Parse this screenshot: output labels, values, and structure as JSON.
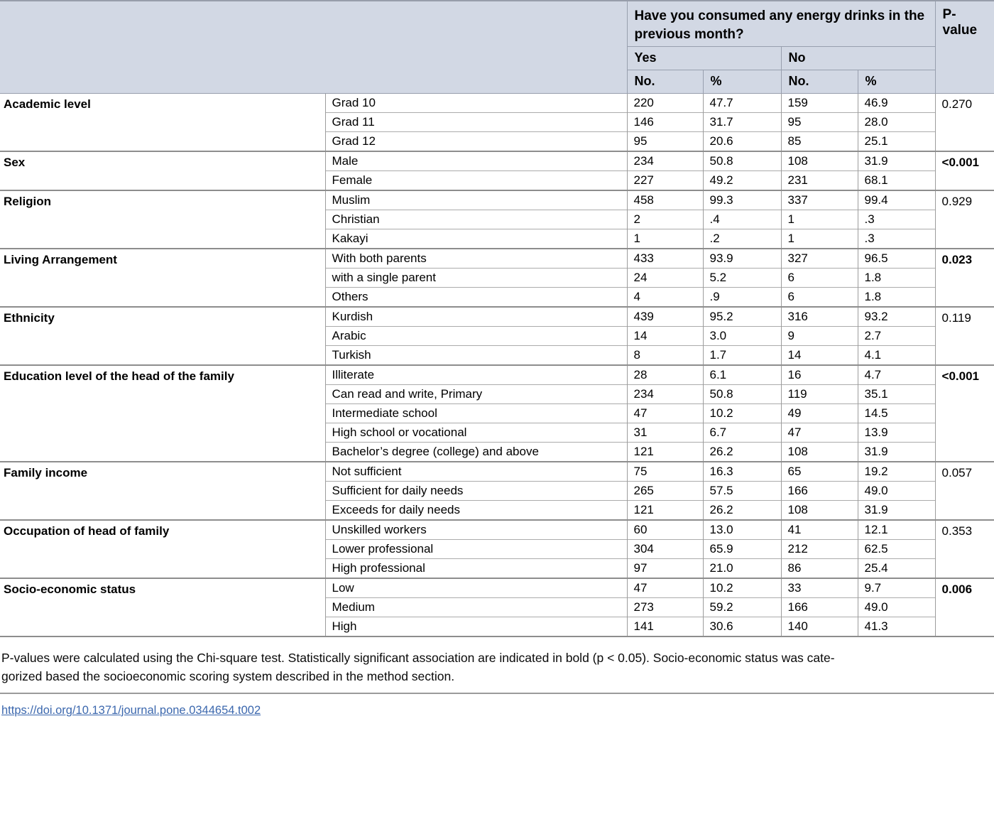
{
  "colors": {
    "header_bg": "#d2d8e4",
    "group_border": "#8d8d8d",
    "cell_border": "#9c9c9c",
    "link_blue": "#3c68ae"
  },
  "table": {
    "header": {
      "span_title": "Have you consumed any energy drinks in the previous month?",
      "yes_label": "Yes",
      "no_label": "No",
      "count_label": "No.",
      "percent_label": "%",
      "p_value_label": "P-value"
    },
    "groups": [
      {
        "category": "Academic level",
        "p": "0.270",
        "p_bold": false,
        "rows": [
          {
            "label": "Grad 10",
            "yes_n": "220",
            "yes_p": "47.7",
            "no_n": "159",
            "no_p": "46.9"
          },
          {
            "label": "Grad 11",
            "yes_n": "146",
            "yes_p": "31.7",
            "no_n": "95",
            "no_p": "28.0"
          },
          {
            "label": "Grad 12",
            "yes_n": "95",
            "yes_p": "20.6",
            "no_n": "85",
            "no_p": "25.1"
          }
        ]
      },
      {
        "category": "Sex",
        "p": "<0.001",
        "p_bold": true,
        "rows": [
          {
            "label": "Male",
            "yes_n": "234",
            "yes_p": "50.8",
            "no_n": "108",
            "no_p": "31.9"
          },
          {
            "label": "Female",
            "yes_n": "227",
            "yes_p": "49.2",
            "no_n": "231",
            "no_p": "68.1"
          }
        ]
      },
      {
        "category": "Religion",
        "p": "0.929",
        "p_bold": false,
        "rows": [
          {
            "label": "Muslim",
            "yes_n": "458",
            "yes_p": "99.3",
            "no_n": "337",
            "no_p": "99.4"
          },
          {
            "label": "Christian",
            "yes_n": "2",
            "yes_p": ".4",
            "no_n": "1",
            "no_p": ".3"
          },
          {
            "label": "Kakayi",
            "yes_n": "1",
            "yes_p": ".2",
            "no_n": "1",
            "no_p": ".3"
          }
        ]
      },
      {
        "category": "Living Arrangement",
        "p": "0.023",
        "p_bold": true,
        "rows": [
          {
            "label": "With both parents",
            "yes_n": "433",
            "yes_p": "93.9",
            "no_n": "327",
            "no_p": "96.5"
          },
          {
            "label": "with a single parent",
            "yes_n": "24",
            "yes_p": "5.2",
            "no_n": "6",
            "no_p": "1.8"
          },
          {
            "label": "Others",
            "yes_n": "4",
            "yes_p": ".9",
            "no_n": "6",
            "no_p": "1.8"
          }
        ]
      },
      {
        "category": "Ethnicity",
        "p": "0.119",
        "p_bold": false,
        "rows": [
          {
            "label": "Kurdish",
            "yes_n": "439",
            "yes_p": "95.2",
            "no_n": "316",
            "no_p": "93.2"
          },
          {
            "label": "Arabic",
            "yes_n": "14",
            "yes_p": "3.0",
            "no_n": "9",
            "no_p": "2.7"
          },
          {
            "label": "Turkish",
            "yes_n": "8",
            "yes_p": "1.7",
            "no_n": "14",
            "no_p": "4.1"
          }
        ]
      },
      {
        "category": "Education level of the head of the family",
        "p": "<0.001",
        "p_bold": true,
        "rows": [
          {
            "label": "Illiterate",
            "yes_n": "28",
            "yes_p": "6.1",
            "no_n": "16",
            "no_p": "4.7"
          },
          {
            "label": "Can read and write, Primary",
            "yes_n": "234",
            "yes_p": "50.8",
            "no_n": "119",
            "no_p": "35.1"
          },
          {
            "label": "Intermediate school",
            "yes_n": "47",
            "yes_p": "10.2",
            "no_n": "49",
            "no_p": "14.5"
          },
          {
            "label": "High school or vocational",
            "yes_n": "31",
            "yes_p": "6.7",
            "no_n": "47",
            "no_p": "13.9"
          },
          {
            "label": "Bachelor’s degree (college) and above",
            "yes_n": "121",
            "yes_p": "26.2",
            "no_n": "108",
            "no_p": "31.9"
          }
        ]
      },
      {
        "category": "Family income",
        "p": "0.057",
        "p_bold": false,
        "rows": [
          {
            "label": "Not sufficient",
            "yes_n": "75",
            "yes_p": "16.3",
            "no_n": "65",
            "no_p": "19.2"
          },
          {
            "label": "Sufficient for daily needs",
            "yes_n": "265",
            "yes_p": "57.5",
            "no_n": "166",
            "no_p": "49.0"
          },
          {
            "label": "Exceeds for daily needs",
            "yes_n": "121",
            "yes_p": "26.2",
            "no_n": "108",
            "no_p": "31.9"
          }
        ]
      },
      {
        "category": "Occupation of head of family",
        "p": "0.353",
        "p_bold": false,
        "rows": [
          {
            "label": "Unskilled workers",
            "yes_n": "60",
            "yes_p": "13.0",
            "no_n": "41",
            "no_p": "12.1"
          },
          {
            "label": "Lower professional",
            "yes_n": "304",
            "yes_p": "65.9",
            "no_n": "212",
            "no_p": "62.5"
          },
          {
            "label": "High professional",
            "yes_n": "97",
            "yes_p": "21.0",
            "no_n": "86",
            "no_p": "25.4"
          }
        ]
      },
      {
        "category": "Socio-economic status",
        "p": "0.006",
        "p_bold": true,
        "rows": [
          {
            "label": "Low",
            "yes_n": "47",
            "yes_p": "10.2",
            "no_n": "33",
            "no_p": "9.7"
          },
          {
            "label": "Medium",
            "yes_n": "273",
            "yes_p": "59.2",
            "no_n": "166",
            "no_p": "49.0"
          },
          {
            "label": "High",
            "yes_n": "141",
            "yes_p": "30.6",
            "no_n": "140",
            "no_p": "41.3"
          }
        ]
      }
    ]
  },
  "footnote": {
    "line1": "P-values were calculated using the Chi-square test. Statistically significant association are indicated in bold (p < 0.05). Socio-economic status was cate-",
    "line2": "gorized based the socioeconomic scoring system described in the method section."
  },
  "doi_link": "https://doi.org/10.1371/journal.pone.0344654.t002"
}
